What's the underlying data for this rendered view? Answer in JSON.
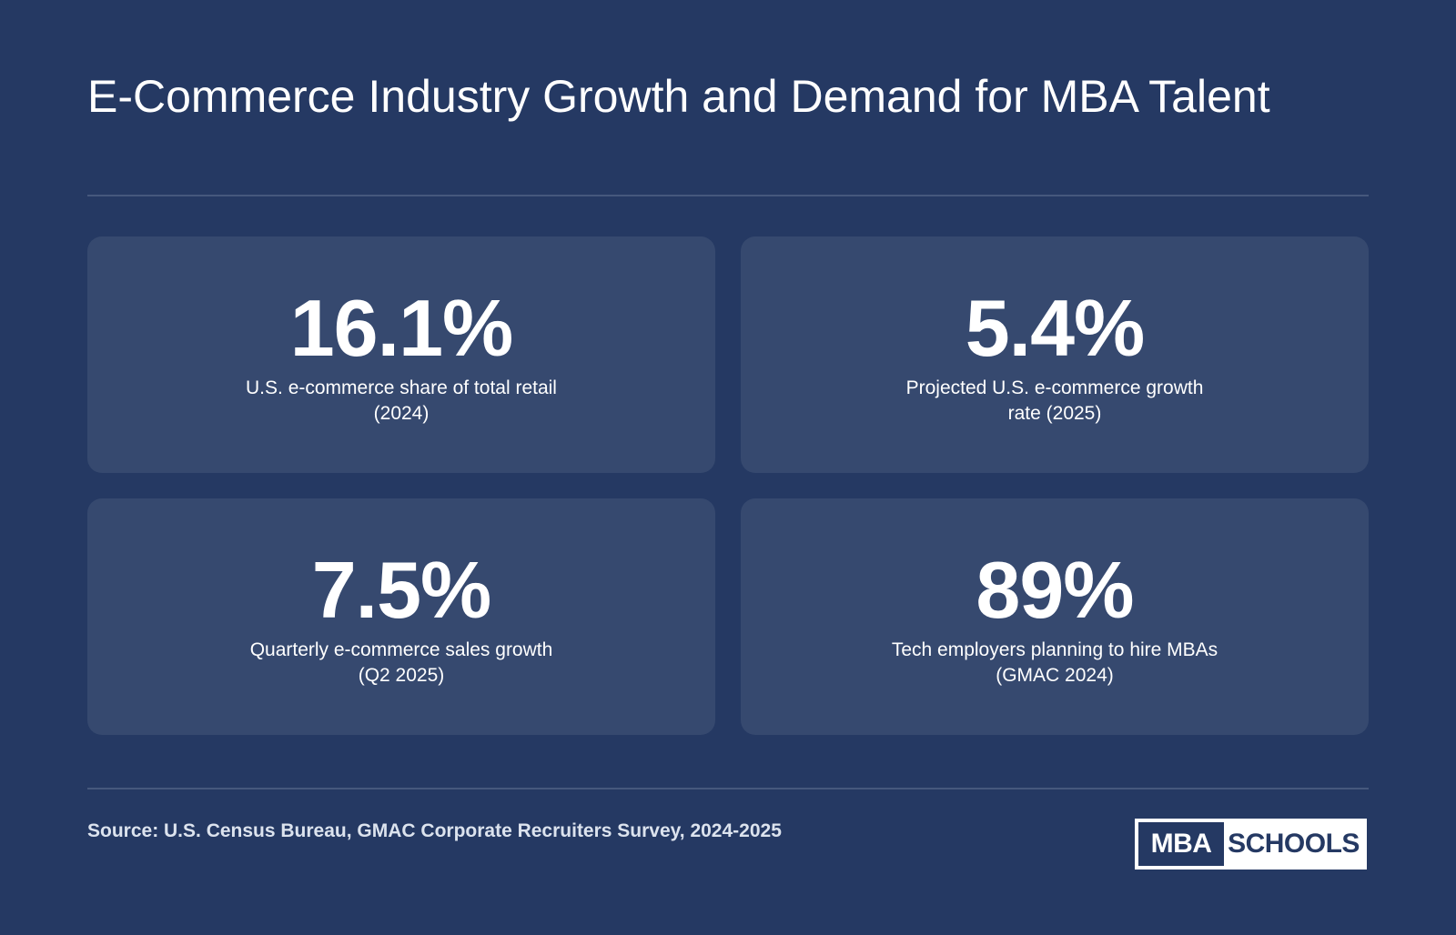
{
  "title": "E-Commerce Industry Growth and Demand for MBA Talent",
  "stats": [
    {
      "value": "16.1%",
      "label": "U.S. e-commerce share of total retail (2024)"
    },
    {
      "value": "5.4%",
      "label": "Projected U.S. e-commerce growth rate (2025)"
    },
    {
      "value": "7.5%",
      "label": "Quarterly e-commerce sales growth (Q2 2025)"
    },
    {
      "value": "89%",
      "label": "Tech employers planning to hire MBAs (GMAC 2024)"
    }
  ],
  "source": "Source: U.S. Census Bureau, GMAC Corporate Recruiters Survey, 2024-2025",
  "logo": {
    "left": "MBA",
    "right": "SCHOOLS"
  },
  "colors": {
    "background": "#253963",
    "card": "#36496f",
    "text": "#ffffff"
  }
}
